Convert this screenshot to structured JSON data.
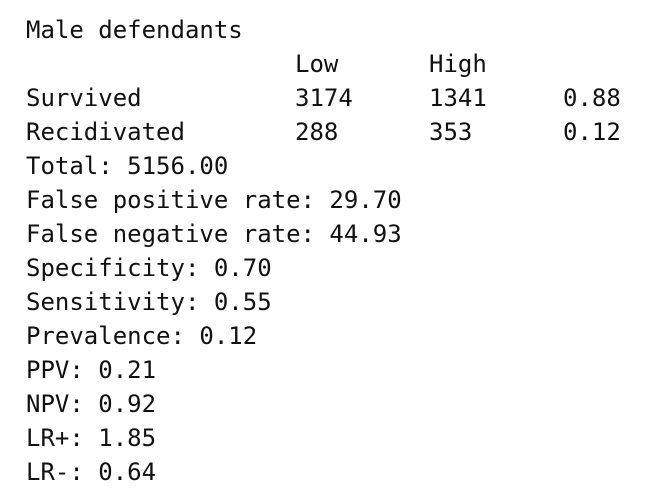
{
  "title": "Male defendants",
  "table": {
    "columns": [
      "Low",
      "High"
    ],
    "rows": [
      {
        "label": "Survived",
        "values": [
          "3174",
          "1341"
        ],
        "prop": "0.88"
      },
      {
        "label": "Recidivated",
        "values": [
          "288",
          "353"
        ],
        "prop": "0.12"
      }
    ]
  },
  "stats": [
    "Total: 5156.00",
    "False positive rate: 29.70",
    "False negative rate: 44.93",
    "Specificity: 0.70",
    "Sensitivity: 0.55",
    "Prevalence: 0.12",
    "PPV: 0.21",
    "NPV: 0.92",
    "LR+: 1.85",
    "LR-: 0.64"
  ]
}
